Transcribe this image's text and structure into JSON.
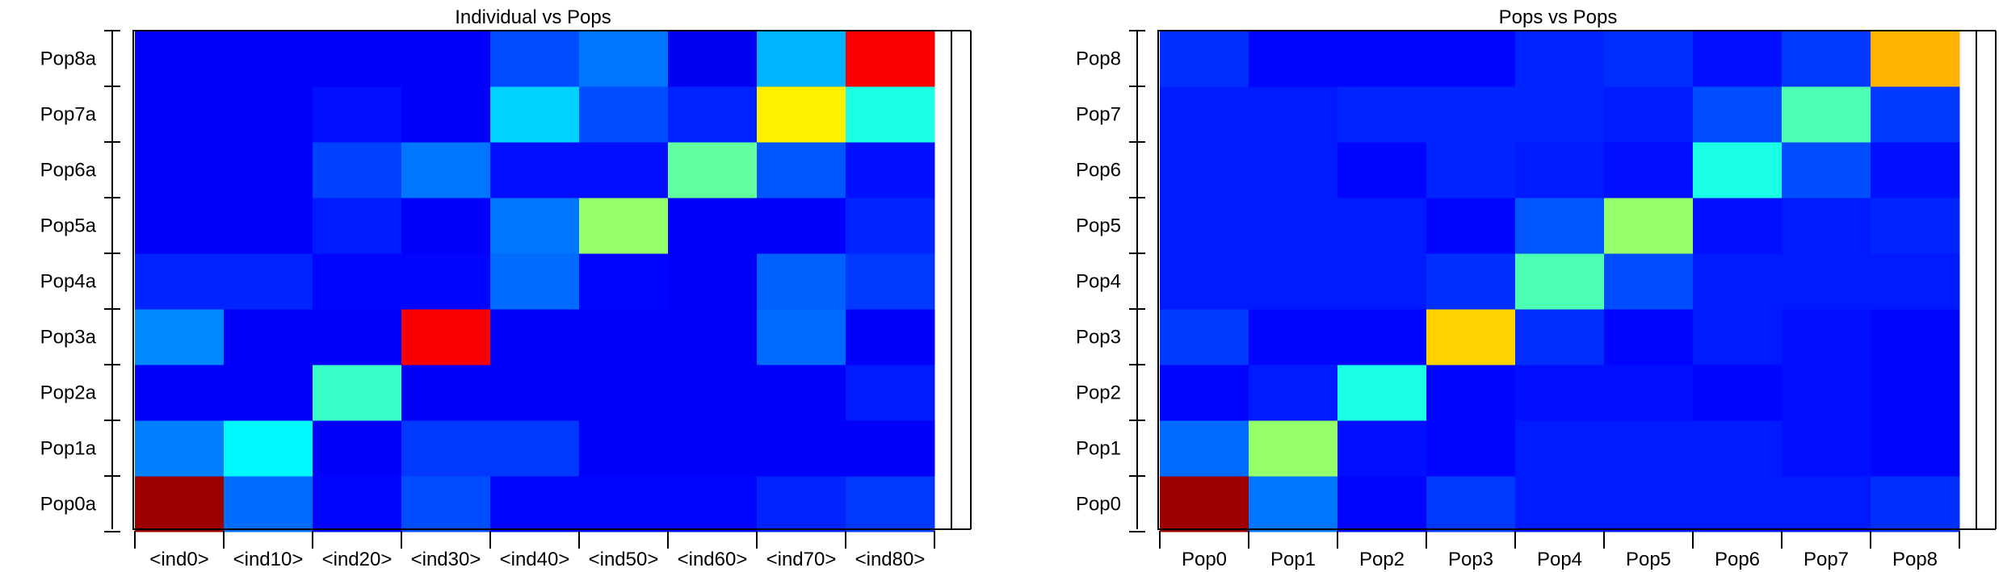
{
  "chart_data": [
    {
      "type": "heatmap",
      "title": "Individual vs Pops",
      "xlabel": "",
      "ylabel": "",
      "colormap": "jet",
      "value_range": [
        0,
        1
      ],
      "x_categories": [
        "<ind0>",
        "<ind10>",
        "<ind20>",
        "<ind30>",
        "<ind40>",
        "<ind50>",
        "<ind60>",
        "<ind70>",
        "<ind80>"
      ],
      "y_categories": [
        "Pop0a",
        "Pop1a",
        "Pop2a",
        "Pop3a",
        "Pop4a",
        "Pop5a",
        "Pop6a",
        "Pop7a",
        "Pop8a"
      ],
      "values": [
        [
          0.97,
          0.23,
          0.13,
          0.2,
          0.13,
          0.13,
          0.13,
          0.16,
          0.18
        ],
        [
          0.25,
          0.37,
          0.12,
          0.18,
          0.18,
          0.12,
          0.12,
          0.12,
          0.12
        ],
        [
          0.12,
          0.12,
          0.43,
          0.12,
          0.12,
          0.12,
          0.12,
          0.12,
          0.15
        ],
        [
          0.26,
          0.12,
          0.12,
          0.88,
          0.12,
          0.12,
          0.12,
          0.23,
          0.12
        ],
        [
          0.16,
          0.16,
          0.13,
          0.13,
          0.23,
          0.13,
          0.12,
          0.22,
          0.18
        ],
        [
          0.12,
          0.12,
          0.15,
          0.12,
          0.24,
          0.52,
          0.12,
          0.12,
          0.16
        ],
        [
          0.12,
          0.12,
          0.19,
          0.24,
          0.14,
          0.14,
          0.47,
          0.21,
          0.14
        ],
        [
          0.12,
          0.12,
          0.14,
          0.12,
          0.33,
          0.2,
          0.16,
          0.64,
          0.4
        ],
        [
          0.12,
          0.12,
          0.12,
          0.12,
          0.2,
          0.24,
          0.11,
          0.3,
          0.88
        ]
      ]
    },
    {
      "type": "heatmap",
      "title": "Pops vs Pops",
      "xlabel": "",
      "ylabel": "",
      "colormap": "jet",
      "value_range": [
        0,
        1
      ],
      "x_categories": [
        "Pop0",
        "Pop1",
        "Pop2",
        "Pop3",
        "Pop4",
        "Pop5",
        "Pop6",
        "Pop7",
        "Pop8"
      ],
      "y_categories": [
        "Pop0",
        "Pop1",
        "Pop2",
        "Pop3",
        "Pop4",
        "Pop5",
        "Pop6",
        "Pop7",
        "Pop8"
      ],
      "values": [
        [
          0.97,
          0.24,
          0.13,
          0.18,
          0.15,
          0.15,
          0.15,
          0.15,
          0.17
        ],
        [
          0.23,
          0.52,
          0.14,
          0.13,
          0.15,
          0.15,
          0.15,
          0.14,
          0.13
        ],
        [
          0.13,
          0.15,
          0.4,
          0.13,
          0.14,
          0.14,
          0.13,
          0.14,
          0.13
        ],
        [
          0.18,
          0.13,
          0.13,
          0.67,
          0.17,
          0.13,
          0.15,
          0.14,
          0.13
        ],
        [
          0.15,
          0.15,
          0.15,
          0.17,
          0.45,
          0.2,
          0.15,
          0.15,
          0.15
        ],
        [
          0.15,
          0.15,
          0.15,
          0.13,
          0.21,
          0.52,
          0.14,
          0.15,
          0.16
        ],
        [
          0.15,
          0.15,
          0.13,
          0.16,
          0.15,
          0.14,
          0.4,
          0.2,
          0.14
        ],
        [
          0.15,
          0.15,
          0.16,
          0.16,
          0.16,
          0.15,
          0.2,
          0.45,
          0.18
        ],
        [
          0.17,
          0.13,
          0.13,
          0.13,
          0.16,
          0.17,
          0.14,
          0.18,
          0.7
        ]
      ]
    }
  ]
}
